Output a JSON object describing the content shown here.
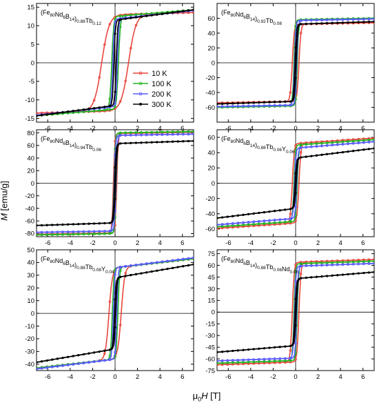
{
  "y_axis_label": "M [emu/g]",
  "x_axis_label": "μ0H [T]",
  "legend": [
    "10 K",
    "100 K",
    "200 K",
    "300 K"
  ],
  "colors": {
    "10 K": "#e8453c",
    "100 K": "#22b422",
    "200 K": "#5a5aff",
    "300 K": "#000000"
  },
  "chart_data": [
    {
      "type": "line",
      "title": "(Fe80Nd6B14)0.88Tb0.12",
      "xlim": [
        -7,
        7
      ],
      "ylim": [
        -16,
        16
      ],
      "xticks": [
        -6,
        -4,
        -2,
        0,
        2,
        4,
        6
      ],
      "yticks": [
        -15,
        -10,
        -5,
        0,
        5,
        10,
        15
      ],
      "series": [
        {
          "name": "10 K",
          "Ms": 13.0,
          "Hc": 1.2,
          "slope": 0.08
        },
        {
          "name": "100 K",
          "Ms": 12.5,
          "Hc": 0.3,
          "slope": 0.25
        },
        {
          "name": "200 K",
          "Ms": 11.8,
          "Hc": 0.2,
          "slope": 0.33
        },
        {
          "name": "300 K",
          "Ms": 11.5,
          "Hc": 0.1,
          "slope": 0.4
        }
      ]
    },
    {
      "type": "line",
      "title": "(Fe80Nd6B14)0.92Tb0.08",
      "xlim": [
        -7,
        7
      ],
      "ylim": [
        -80,
        80
      ],
      "xticks": [
        -6,
        -4,
        -2,
        0,
        2,
        4,
        6
      ],
      "yticks": [
        -60,
        -40,
        -20,
        0,
        20,
        40,
        60
      ],
      "series": [
        {
          "name": "10 K",
          "Ms": 52,
          "Hc": 0.3,
          "slope": 0.3
        },
        {
          "name": "100 K",
          "Ms": 58,
          "Hc": 0.15,
          "slope": 0.3
        },
        {
          "name": "200 K",
          "Ms": 57,
          "Hc": 0.1,
          "slope": 0.3
        },
        {
          "name": "300 K",
          "Ms": 52,
          "Hc": 0.05,
          "slope": 0.5
        }
      ]
    },
    {
      "type": "line",
      "title": "(Fe80Nd6B14)0.94Tb0.06",
      "xlim": [
        -7,
        7
      ],
      "ylim": [
        -85,
        85
      ],
      "xticks": [
        -6,
        -4,
        -2,
        0,
        2,
        4,
        6
      ],
      "yticks": [
        -80,
        -60,
        -40,
        -20,
        0,
        20,
        40,
        60,
        80
      ],
      "series": [
        {
          "name": "10 K",
          "Ms": 79,
          "Hc": 0.15,
          "slope": 0.3
        },
        {
          "name": "100 K",
          "Ms": 80,
          "Hc": 0.1,
          "slope": 0.3
        },
        {
          "name": "200 K",
          "Ms": 76,
          "Hc": 0.08,
          "slope": 0.3
        },
        {
          "name": "300 K",
          "Ms": 63,
          "Hc": 0.05,
          "slope": 0.6
        }
      ]
    },
    {
      "type": "line",
      "title": "(Fe80Nd6B14)0.88Tb0.06Y0.06",
      "xlim": [
        -7,
        7
      ],
      "ylim": [
        -70,
        70
      ],
      "xticks": [
        -6,
        -4,
        -2,
        0,
        2,
        4,
        6
      ],
      "yticks": [
        -60,
        -40,
        -20,
        0,
        20,
        40,
        60
      ],
      "series": [
        {
          "name": "10 K",
          "Ms": 52,
          "Hc": 0.3,
          "slope": 1.0
        },
        {
          "name": "100 K",
          "Ms": 50,
          "Hc": 0.15,
          "slope": 1.0
        },
        {
          "name": "200 K",
          "Ms": 46,
          "Hc": 0.1,
          "slope": 1.2
        },
        {
          "name": "300 K",
          "Ms": 33,
          "Hc": 0.05,
          "slope": 1.8
        }
      ]
    },
    {
      "type": "line",
      "title": "(Fe80Nd6B14)0.88Tb0.08Y0.04",
      "xlim": [
        -7,
        7
      ],
      "ylim": [
        -45,
        50
      ],
      "xticks": [
        -6,
        -4,
        -2,
        0,
        2,
        4,
        6
      ],
      "yticks": [
        -40,
        -30,
        -20,
        -10,
        0,
        10,
        20,
        30,
        40,
        50
      ],
      "series": [
        {
          "name": "10 K",
          "Ms": 36,
          "Hc": 0.55,
          "slope": 1.0
        },
        {
          "name": "100 K",
          "Ms": 36,
          "Hc": 0.25,
          "slope": 1.0
        },
        {
          "name": "200 K",
          "Ms": 36,
          "Hc": 0.15,
          "slope": 1.1
        },
        {
          "name": "300 K",
          "Ms": 28,
          "Hc": 0.05,
          "slope": 1.5
        }
      ]
    },
    {
      "type": "line",
      "title": "(Fe80Nd6B14)0.88Tb0.06Nd0.06",
      "xlim": [
        -7,
        7
      ],
      "ylim": [
        -75,
        80
      ],
      "xticks": [
        -6,
        -4,
        -2,
        0,
        2,
        4,
        6
      ],
      "yticks": [
        -75,
        -60,
        -45,
        -30,
        -15,
        0,
        15,
        30,
        45,
        60,
        75
      ],
      "series": [
        {
          "name": "10 K",
          "Ms": 64,
          "Hc": 0.3,
          "slope": 0.5
        },
        {
          "name": "100 K",
          "Ms": 62,
          "Hc": 0.15,
          "slope": 0.5
        },
        {
          "name": "200 K",
          "Ms": 59,
          "Hc": 0.1,
          "slope": 0.5
        },
        {
          "name": "300 K",
          "Ms": 43,
          "Hc": 0.05,
          "slope": 1.2
        }
      ]
    }
  ]
}
